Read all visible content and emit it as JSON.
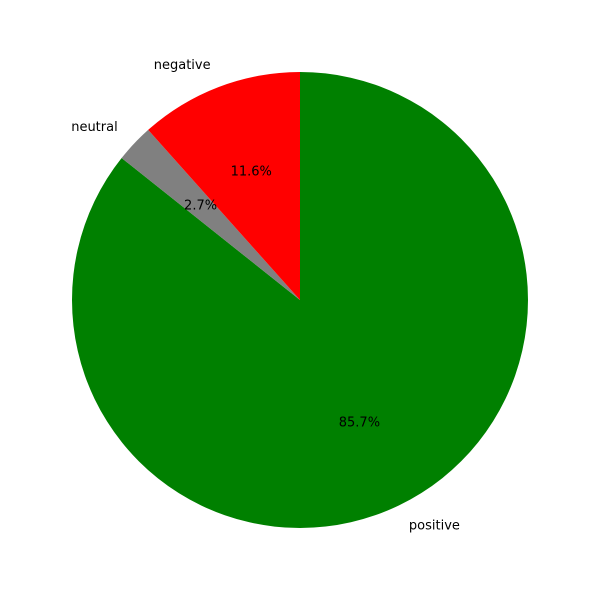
{
  "chart_data": {
    "type": "pie",
    "title": "",
    "categories": [
      "positive",
      "neutral",
      "negative"
    ],
    "values": [
      85.7,
      2.7,
      11.6
    ],
    "labels": [
      "85.7%",
      "2.7%",
      "11.6%"
    ],
    "colors": [
      "#008000",
      "#808080",
      "#ff0000"
    ],
    "start_angle_deg": 90,
    "direction": "clockwise",
    "legend": "none"
  }
}
